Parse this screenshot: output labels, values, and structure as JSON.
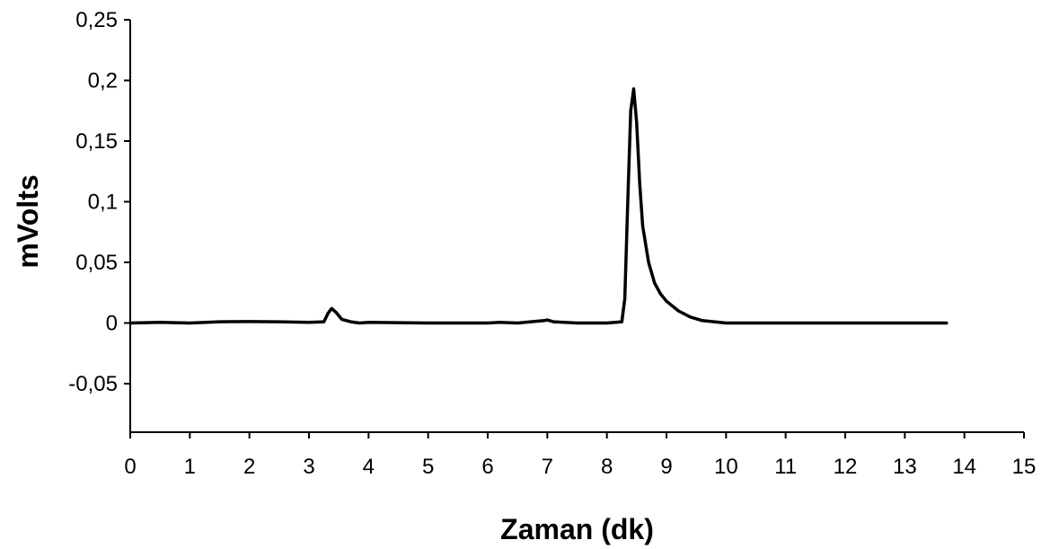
{
  "chart_data": {
    "type": "line",
    "xlabel": "Zaman (dk)",
    "ylabel": "mVolts",
    "xlim": [
      0,
      15
    ],
    "ylim": [
      -0.09,
      0.25
    ],
    "x_ticks": [
      0,
      1,
      2,
      3,
      4,
      5,
      6,
      7,
      8,
      9,
      10,
      11,
      12,
      13,
      14,
      15
    ],
    "x_tick_labels": [
      "0",
      "1",
      "2",
      "3",
      "4",
      "5",
      "6",
      "7",
      "8",
      "9",
      "10",
      "11",
      "12",
      "13",
      "14",
      "15"
    ],
    "y_ticks": [
      0.25,
      0.2,
      0.15,
      0.1,
      0.05,
      0,
      -0.05
    ],
    "y_tick_labels": [
      "0,25",
      "0,2",
      "0,15",
      "0,1",
      "0,05",
      "0",
      "-0,05"
    ],
    "grid": false,
    "legend": "none",
    "series": [
      {
        "color": "#000000",
        "x": [
          0,
          0.5,
          1.0,
          1.5,
          2.0,
          2.5,
          3.0,
          3.25,
          3.32,
          3.38,
          3.45,
          3.55,
          3.7,
          3.85,
          4.0,
          5.0,
          6.0,
          6.2,
          6.5,
          6.95,
          7.0,
          7.1,
          7.5,
          8.0,
          8.25,
          8.3,
          8.35,
          8.4,
          8.45,
          8.5,
          8.55,
          8.6,
          8.7,
          8.8,
          8.9,
          9.0,
          9.2,
          9.4,
          9.6,
          9.8,
          10.0,
          10.5,
          11.0,
          12.0,
          13.0,
          13.7
        ],
        "y": [
          0,
          0.0005,
          0,
          0.001,
          0.0012,
          0.001,
          0.0005,
          0.001,
          0.008,
          0.012,
          0.009,
          0.003,
          0.001,
          0,
          0.0005,
          0,
          0,
          0.0005,
          0,
          0.002,
          0.0025,
          0.001,
          0,
          0,
          0.001,
          0.02,
          0.1,
          0.175,
          0.193,
          0.165,
          0.115,
          0.08,
          0.05,
          0.033,
          0.024,
          0.018,
          0.01,
          0.005,
          0.002,
          0.001,
          0,
          0,
          0,
          0,
          0,
          0
        ]
      }
    ]
  }
}
